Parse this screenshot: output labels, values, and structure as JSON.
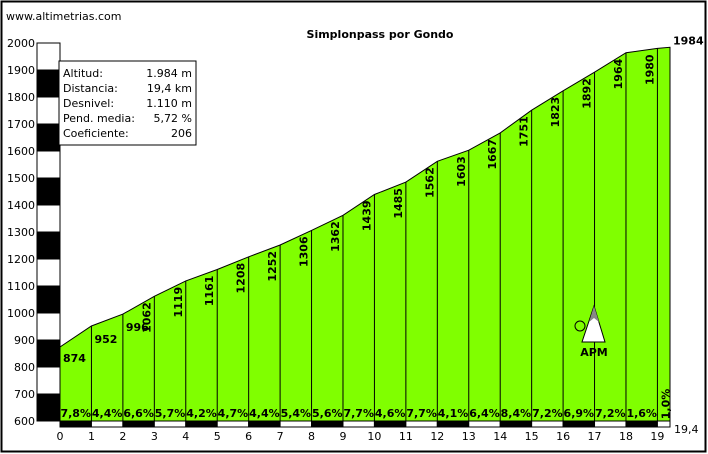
{
  "site": "www.altimetrias.com",
  "chart_data": {
    "type": "area",
    "title": "Simplonpass por Gondo",
    "stats": [
      {
        "label": "Altitud:",
        "value": "1.984 m"
      },
      {
        "label": "Distancia:",
        "value": "19,4 km"
      },
      {
        "label": "Desnivel:",
        "value": "1.110 m"
      },
      {
        "label": "Pend. media:",
        "value": "5,72 %"
      },
      {
        "label": "Coeficiente:",
        "value": "206"
      }
    ],
    "ylim": [
      600,
      2000
    ],
    "xlim": [
      0,
      19.4
    ],
    "y_ticks": [
      "600",
      "700",
      "800",
      "900",
      "1000",
      "1100",
      "1200",
      "1300",
      "1400",
      "1500",
      "1600",
      "1700",
      "1800",
      "1900",
      "2000"
    ],
    "x_ticks": [
      "0",
      "1",
      "2",
      "3",
      "4",
      "5",
      "6",
      "7",
      "8",
      "9",
      "10",
      "11",
      "12",
      "13",
      "14",
      "15",
      "16",
      "17",
      "18",
      "19"
    ],
    "x_end_label": "19,4",
    "x": [
      0,
      1,
      2,
      3,
      4,
      5,
      6,
      7,
      8,
      9,
      10,
      11,
      12,
      13,
      14,
      15,
      16,
      17,
      18,
      19,
      19.4
    ],
    "altitudes": [
      874,
      952,
      996,
      1062,
      1119,
      1161,
      1208,
      1252,
      1306,
      1362,
      1439,
      1485,
      1562,
      1603,
      1667,
      1751,
      1823,
      1892,
      1964,
      1980,
      1984
    ],
    "altitude_labels": [
      "874",
      "952",
      "996",
      "1062",
      "1119",
      "1161",
      "1208",
      "1252",
      "1306",
      "1362",
      "1439",
      "1485",
      "1562",
      "1603",
      "1667",
      "1751",
      "1823",
      "1892",
      "1964",
      "1980"
    ],
    "end_altitude_label": "1984",
    "gradients": [
      "7,8%",
      "4,4%",
      "6,6%",
      "5,7%",
      "4,2%",
      "4,7%",
      "4,4%",
      "5,4%",
      "5,6%",
      "7,7%",
      "4,6%",
      "7,7%",
      "4,1%",
      "6,4%",
      "8,4%",
      "7,2%",
      "6,9%",
      "7,2%",
      "1,6%"
    ],
    "last_gradient": "1,0%",
    "fill_color": "#80ff00",
    "logo_text": "APM"
  }
}
